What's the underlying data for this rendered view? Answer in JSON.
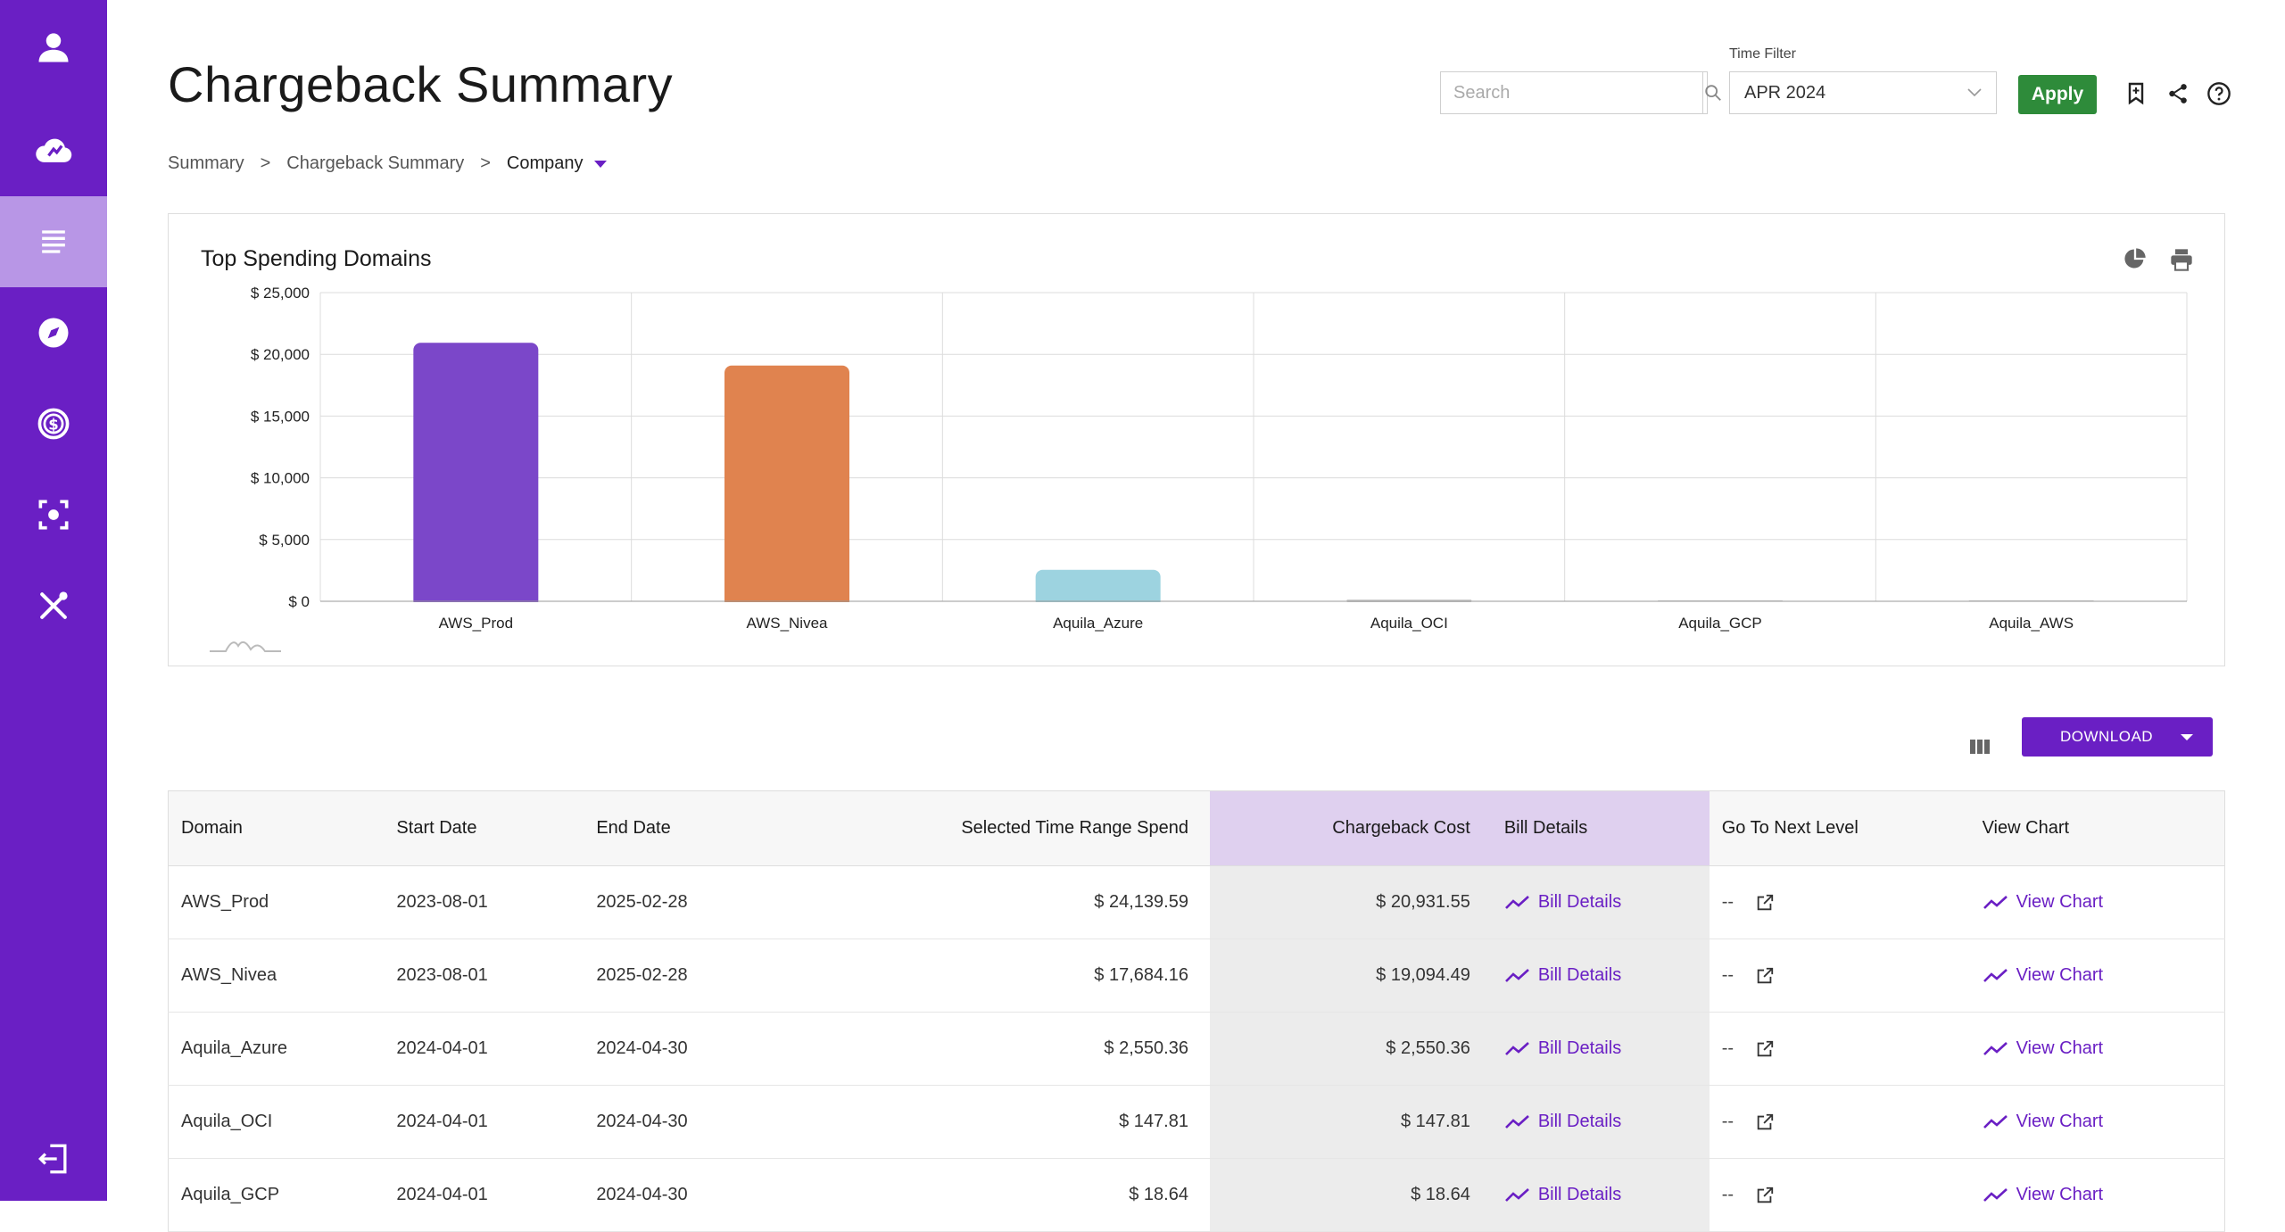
{
  "app": {
    "title": "Chargeback Summary",
    "accent": "#6a1fc4",
    "sidebar_items": [
      {
        "icon": "user-icon"
      },
      {
        "icon": "cloud-dashboard-icon"
      },
      {
        "icon": "list-icon",
        "active": true
      },
      {
        "icon": "compass-icon"
      },
      {
        "icon": "cost-savings-icon"
      },
      {
        "icon": "scan-settings-icon"
      },
      {
        "icon": "tools-icon"
      },
      {
        "icon": "logout-icon"
      }
    ]
  },
  "breadcrumb": {
    "item1": "Summary",
    "item2": "Chargeback Summary",
    "current": "Company",
    "sep": ">"
  },
  "search": {
    "placeholder": "Search"
  },
  "time_filter": {
    "label": "Time Filter",
    "value": "APR 2024"
  },
  "apply_label": "Apply",
  "download_label": "DOWNLOAD",
  "chart_data": {
    "type": "bar",
    "title": "Top Spending Domains",
    "categories": [
      "AWS_Prod",
      "AWS_Nivea",
      "Aquila_Azure",
      "Aquila_OCI",
      "Aquila_GCP",
      "Aquila_AWS"
    ],
    "values": [
      20931.55,
      19094.49,
      2550.36,
      147.81,
      18.64,
      0
    ],
    "colors": [
      "#7b47c9",
      "#e0834f",
      "#9dd3e0",
      "#cccccc",
      "#cccccc",
      "#cccccc"
    ],
    "ylim": [
      0,
      25000
    ],
    "yticks": [
      "$ 25,000",
      "$ 20,000",
      "$ 15,000",
      "$ 10,000",
      "$ 5,000",
      "$ 0"
    ],
    "ytick_values": [
      25000,
      20000,
      15000,
      10000,
      5000,
      0
    ],
    "grid": true,
    "xlabel": "",
    "ylabel": ""
  },
  "table": {
    "headers": {
      "domain": "Domain",
      "start": "Start Date",
      "end": "End Date",
      "spend": "Selected Time Range Spend",
      "chargeback": "Chargeback Cost",
      "bill": "Bill Details",
      "next": "Go To Next Level",
      "chart": "View Chart"
    },
    "rows": [
      {
        "domain": "AWS_Prod",
        "start": "2023-08-01",
        "end": "2025-02-28",
        "spend": "$ 24,139.59",
        "chargeback": "$ 20,931.55",
        "bill": "Bill Details",
        "next": "--",
        "chart": "View Chart"
      },
      {
        "domain": "AWS_Nivea",
        "start": "2023-08-01",
        "end": "2025-02-28",
        "spend": "$ 17,684.16",
        "chargeback": "$ 19,094.49",
        "bill": "Bill Details",
        "next": "--",
        "chart": "View Chart"
      },
      {
        "domain": "Aquila_Azure",
        "start": "2024-04-01",
        "end": "2024-04-30",
        "spend": "$ 2,550.36",
        "chargeback": "$ 2,550.36",
        "bill": "Bill Details",
        "next": "--",
        "chart": "View Chart"
      },
      {
        "domain": "Aquila_OCI",
        "start": "2024-04-01",
        "end": "2024-04-30",
        "spend": "$ 147.81",
        "chargeback": "$ 147.81",
        "bill": "Bill Details",
        "next": "--",
        "chart": "View Chart"
      },
      {
        "domain": "Aquila_GCP",
        "start": "2024-04-01",
        "end": "2024-04-30",
        "spend": "$ 18.64",
        "chargeback": "$ 18.64",
        "bill": "Bill Details",
        "next": "--",
        "chart": "View Chart"
      }
    ]
  }
}
